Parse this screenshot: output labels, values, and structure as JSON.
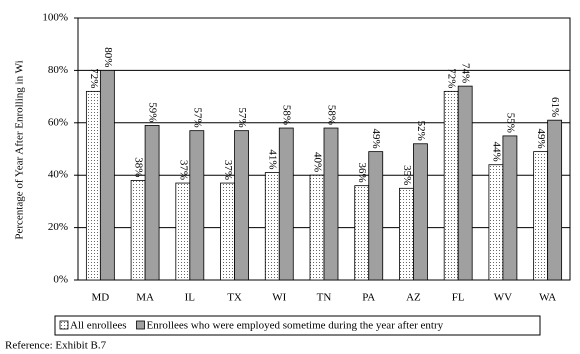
{
  "chart_data": {
    "type": "bar",
    "y_label": "Percentage of Year After Enrolling in Wi",
    "categories": [
      "MD",
      "MA",
      "IL",
      "TX",
      "WI",
      "TN",
      "PA",
      "AZ",
      "FL",
      "WV",
      "WA"
    ],
    "series": [
      {
        "name": "All enrollees",
        "color": "#ffffff",
        "values": [
          72,
          38,
          37,
          37,
          41,
          40,
          36,
          35,
          72,
          44,
          49
        ],
        "value_labels": [
          "72%",
          "38%",
          "37%",
          "37%",
          "41%",
          "40%",
          "36%",
          "35%",
          "72%",
          "44%",
          "49%"
        ]
      },
      {
        "name": "Enrollees who were employed sometime during the year after entry",
        "color": "#a0a0a0",
        "values": [
          80,
          59,
          57,
          57,
          58,
          58,
          49,
          52,
          74,
          55,
          61
        ],
        "value_labels": [
          "80%",
          "59%",
          "57%",
          "57%",
          "58%",
          "58%",
          "49%",
          "52%",
          "74%",
          "55%",
          "61%"
        ]
      }
    ],
    "ylim": [
      0,
      100
    ],
    "yticks": [
      {
        "value": 0,
        "label": "0%"
      },
      {
        "value": 20,
        "label": "20%"
      },
      {
        "value": 40,
        "label": "40%"
      },
      {
        "value": 60,
        "label": "60%"
      },
      {
        "value": 80,
        "label": "80%"
      },
      {
        "value": 100,
        "label": "100%"
      }
    ],
    "grid": true,
    "legend": "bottom",
    "note": "Reference:  Exhibit B.7"
  }
}
